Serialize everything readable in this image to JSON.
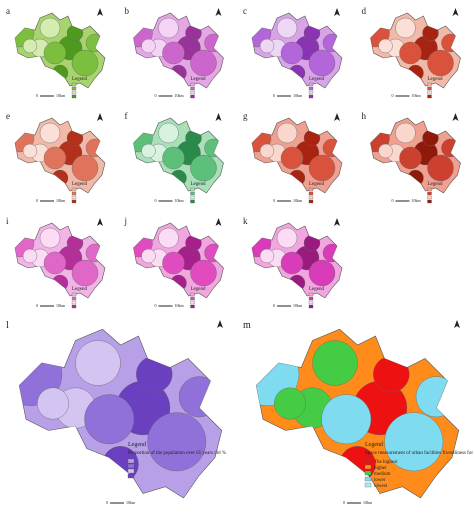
{
  "panels": [
    {
      "letter": "a"
    },
    {
      "letter": "b"
    },
    {
      "letter": "c"
    },
    {
      "letter": "d"
    },
    {
      "letter": "e"
    },
    {
      "letter": "f"
    },
    {
      "letter": "g"
    },
    {
      "letter": "h"
    },
    {
      "letter": "i"
    },
    {
      "letter": "j"
    },
    {
      "letter": "k"
    },
    {
      "letter": "l"
    },
    {
      "letter": "m"
    }
  ],
  "legend_title": "Legend",
  "scale": [
    "0",
    "10km"
  ],
  "l_legend": "Proportion of the population over 65 years old %",
  "m_legend": {
    "title": "Space measurement of urban facilities friendliness for the elderly",
    "items": [
      "The highest",
      "higher",
      "medium",
      "lower",
      "lowest"
    ]
  }
}
